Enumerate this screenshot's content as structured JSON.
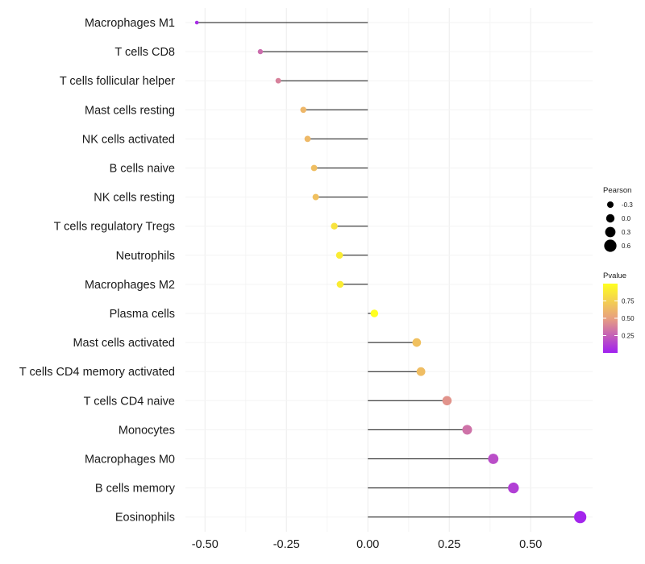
{
  "chart_data": {
    "type": "lollipop",
    "title": "",
    "xlabel": "",
    "ylabel": "",
    "xlim": [
      -0.56,
      0.69
    ],
    "x_ticks": [
      -0.5,
      -0.25,
      0.0,
      0.25,
      0.5
    ],
    "x_tick_labels": [
      "-0.50",
      "-0.25",
      "0.00",
      "0.25",
      "0.50"
    ],
    "grid": true,
    "categories": [
      "Macrophages M1",
      "T cells CD8",
      "T cells follicular helper",
      "Mast cells resting",
      "NK cells activated",
      "B cells naive",
      "NK cells resting",
      "T cells regulatory  Tregs",
      "Neutrophils",
      "Macrophages M2",
      "Plasma cells",
      "Mast cells activated",
      "T cells CD4 memory activated",
      "T cells CD4 naive",
      "Monocytes",
      "Macrophages M0",
      "B cells memory",
      "Eosinophils"
    ],
    "pearson": [
      -0.525,
      -0.33,
      -0.275,
      -0.198,
      -0.185,
      -0.165,
      -0.16,
      -0.103,
      -0.087,
      -0.085,
      0.02,
      0.15,
      0.163,
      0.243,
      0.305,
      0.385,
      0.447,
      0.652
    ],
    "pvalue": [
      0.05,
      0.3,
      0.38,
      0.62,
      0.63,
      0.66,
      0.67,
      0.85,
      0.9,
      0.9,
      1.0,
      0.67,
      0.65,
      0.45,
      0.32,
      0.18,
      0.12,
      0.02
    ],
    "size_legend": {
      "title": "Pearson",
      "values": [
        -0.3,
        0.0,
        0.3,
        0.6
      ],
      "labels": [
        "-0.3",
        "0.0",
        "0.3",
        "0.6"
      ]
    },
    "color_legend": {
      "title": "Pvalue",
      "ticks": [
        0.75,
        0.5,
        0.25
      ],
      "labels": [
        "0.75",
        "0.50",
        "0.25"
      ],
      "range": [
        0.0,
        1.0
      ],
      "low_color": "#a020f0",
      "mid_color": "#e8a080",
      "high_color": "#ffff20"
    }
  }
}
